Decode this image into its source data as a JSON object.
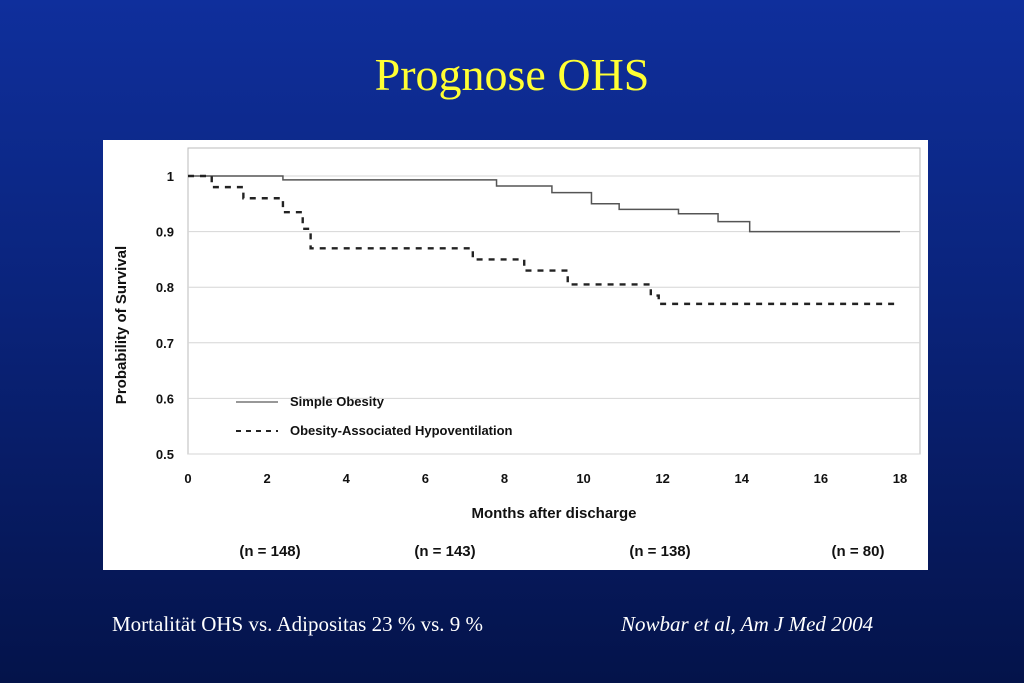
{
  "title": "Prognose OHS",
  "caption": {
    "left": "Mortalität OHS vs. Adipositas 23 % vs. 9 %",
    "right": "Nowbar et al, Am J Med 2004"
  },
  "chart_data": {
    "type": "line",
    "step": true,
    "xlabel": "Months after discharge",
    "ylabel": "Probability of Survival",
    "xlim": [
      0,
      18
    ],
    "ylim": [
      0.5,
      1
    ],
    "xticks": [
      "0",
      "2",
      "4",
      "6",
      "8",
      "10",
      "12",
      "14",
      "16",
      "18"
    ],
    "yticks": [
      "0.5",
      "0.6",
      "0.7",
      "0.8",
      "0.9",
      "1"
    ],
    "grid": "horizontal",
    "legend_position": "lower-left",
    "at_risk": [
      "(n = 148)",
      "(n = 143)",
      "(n = 138)",
      "(n = 80)"
    ],
    "series": [
      {
        "name": "Simple Obesity",
        "style": "solid",
        "x": [
          0,
          2.4,
          7.8,
          9.2,
          10.2,
          10.9,
          12.4,
          13.4,
          14.2,
          18
        ],
        "y": [
          1.0,
          0.993,
          0.982,
          0.97,
          0.95,
          0.94,
          0.932,
          0.918,
          0.9,
          0.9
        ]
      },
      {
        "name": "Obesity-Associated Hypoventilation",
        "style": "dashed",
        "x": [
          0,
          0.6,
          1.4,
          2.4,
          2.9,
          3.1,
          7.2,
          8.5,
          9.6,
          11.7,
          11.9,
          12.3,
          18
        ],
        "y": [
          1.0,
          0.98,
          0.96,
          0.935,
          0.905,
          0.87,
          0.85,
          0.83,
          0.805,
          0.785,
          0.77,
          0.77,
          0.77
        ]
      }
    ]
  }
}
